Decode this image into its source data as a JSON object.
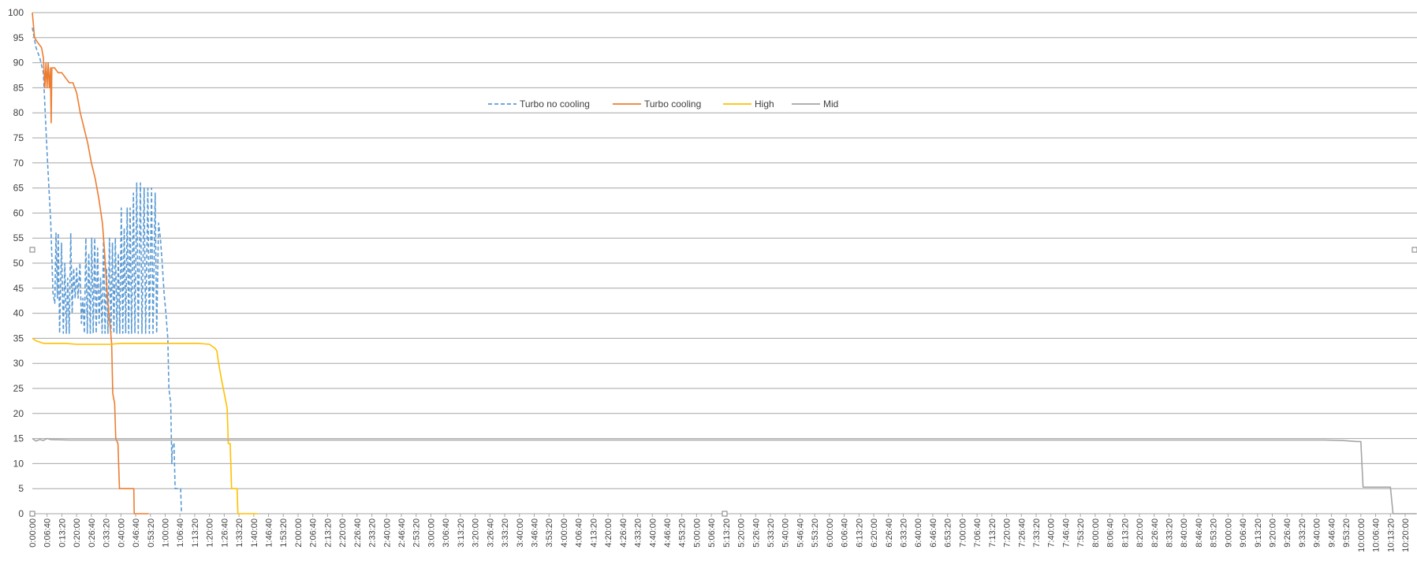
{
  "chart_data": {
    "type": "line",
    "title": "",
    "xlabel": "",
    "ylabel": "",
    "ylim": [
      0,
      100
    ],
    "y_ticks": [
      0,
      5,
      10,
      15,
      20,
      25,
      30,
      35,
      40,
      45,
      50,
      55,
      60,
      65,
      70,
      75,
      80,
      85,
      90,
      95,
      100
    ],
    "x_step_seconds": 400,
    "x_tick_labels": [
      "0:00:00",
      "0:06:40",
      "0:13:20",
      "0:20:00",
      "0:26:40",
      "0:33:20",
      "0:40:00",
      "0:46:40",
      "0:53:20",
      "1:00:00",
      "1:06:40",
      "1:13:20",
      "1:20:00",
      "1:26:40",
      "1:33:20",
      "1:40:00",
      "1:46:40",
      "1:53:20",
      "2:00:00",
      "2:06:40",
      "2:13:20",
      "2:20:00",
      "2:26:40",
      "2:33:20",
      "2:40:00",
      "2:46:40",
      "2:53:20",
      "3:00:00",
      "3:06:40",
      "3:13:20",
      "3:20:00",
      "3:26:40",
      "3:33:20",
      "3:40:00",
      "3:46:40",
      "3:53:20",
      "4:00:00",
      "4:06:40",
      "4:13:20",
      "4:20:00",
      "4:26:40",
      "4:33:20",
      "4:40:00",
      "4:46:40",
      "4:53:20",
      "5:00:00",
      "5:06:40",
      "5:13:20",
      "5:20:00",
      "5:26:40",
      "5:33:20",
      "5:40:00",
      "5:46:40",
      "5:53:20",
      "6:00:00",
      "6:06:40",
      "6:13:20",
      "6:20:00",
      "6:26:40",
      "6:33:20",
      "6:40:00",
      "6:46:40",
      "6:53:20",
      "7:00:00",
      "7:06:40",
      "7:13:20",
      "7:20:00",
      "7:26:40",
      "7:33:20",
      "7:40:00",
      "7:46:40",
      "7:53:20",
      "8:00:00",
      "8:06:40",
      "8:13:20",
      "8:20:00",
      "8:26:40",
      "8:33:20",
      "8:40:00",
      "8:46:40",
      "8:53:20",
      "9:00:00",
      "9:06:40",
      "9:13:20",
      "9:20:00",
      "9:26:40",
      "9:33:20",
      "9:40:00",
      "9:46:40",
      "9:53:20",
      "10:00:00",
      "10:06:40",
      "10:13:20",
      "10:20:00"
    ],
    "legend_position": "top-center",
    "grid": true,
    "series": [
      {
        "name": "Turbo no cooling",
        "color": "#5b9bd5",
        "dashed": true,
        "points": [
          [
            0,
            97
          ],
          [
            100,
            93
          ],
          [
            200,
            91
          ],
          [
            300,
            88
          ],
          [
            400,
            72
          ],
          [
            500,
            58
          ],
          [
            560,
            44
          ],
          [
            610,
            42
          ],
          [
            640,
            56
          ],
          [
            680,
            43
          ],
          [
            700,
            56
          ],
          [
            740,
            36
          ],
          [
            790,
            54
          ],
          [
            840,
            36
          ],
          [
            880,
            50
          ],
          [
            920,
            36
          ],
          [
            960,
            47
          ],
          [
            1000,
            36
          ],
          [
            1040,
            56
          ],
          [
            1080,
            40
          ],
          [
            1120,
            49
          ],
          [
            1160,
            43
          ],
          [
            1200,
            49
          ],
          [
            1240,
            43
          ],
          [
            1290,
            50
          ],
          [
            1330,
            38
          ],
          [
            1370,
            43
          ],
          [
            1410,
            36
          ],
          [
            1450,
            55
          ],
          [
            1490,
            36
          ],
          [
            1530,
            52
          ],
          [
            1570,
            36
          ],
          [
            1610,
            55
          ],
          [
            1650,
            36
          ],
          [
            1690,
            55
          ],
          [
            1730,
            36
          ],
          [
            1770,
            53
          ],
          [
            1810,
            38
          ],
          [
            1850,
            47
          ],
          [
            1890,
            36
          ],
          [
            1930,
            55
          ],
          [
            1970,
            36
          ],
          [
            2010,
            49
          ],
          [
            2050,
            36
          ],
          [
            2090,
            55
          ],
          [
            2130,
            36
          ],
          [
            2170,
            54
          ],
          [
            2210,
            36
          ],
          [
            2250,
            55
          ],
          [
            2290,
            36
          ],
          [
            2330,
            52
          ],
          [
            2370,
            36
          ],
          [
            2410,
            61
          ],
          [
            2450,
            36
          ],
          [
            2490,
            57
          ],
          [
            2530,
            36
          ],
          [
            2570,
            61
          ],
          [
            2610,
            36
          ],
          [
            2650,
            61
          ],
          [
            2690,
            36
          ],
          [
            2740,
            64
          ],
          [
            2780,
            36
          ],
          [
            2830,
            66
          ],
          [
            2870,
            36
          ],
          [
            2930,
            66
          ],
          [
            2970,
            36
          ],
          [
            3030,
            65
          ],
          [
            3070,
            36
          ],
          [
            3130,
            65
          ],
          [
            3170,
            36
          ],
          [
            3230,
            65
          ],
          [
            3270,
            36
          ],
          [
            3330,
            64
          ],
          [
            3370,
            36
          ],
          [
            3420,
            58
          ],
          [
            3470,
            55
          ],
          [
            3520,
            50
          ],
          [
            3570,
            44
          ],
          [
            3620,
            40
          ],
          [
            3670,
            35
          ],
          [
            3700,
            25
          ],
          [
            3750,
            22
          ],
          [
            3780,
            10
          ],
          [
            3800,
            14
          ],
          [
            3840,
            14
          ],
          [
            3870,
            5
          ],
          [
            3930,
            5
          ],
          [
            3980,
            5
          ],
          [
            4020,
            5
          ],
          [
            4040,
            0
          ]
        ]
      },
      {
        "name": "Turbo cooling",
        "color": "#ed7d31",
        "dashed": false,
        "points": [
          [
            0,
            100
          ],
          [
            60,
            95
          ],
          [
            150,
            94
          ],
          [
            250,
            93
          ],
          [
            300,
            91
          ],
          [
            340,
            85
          ],
          [
            370,
            90
          ],
          [
            400,
            85
          ],
          [
            430,
            90
          ],
          [
            460,
            85
          ],
          [
            490,
            89
          ],
          [
            510,
            78
          ],
          [
            530,
            89
          ],
          [
            600,
            89
          ],
          [
            700,
            88
          ],
          [
            800,
            88
          ],
          [
            900,
            87
          ],
          [
            1000,
            86
          ],
          [
            1100,
            86
          ],
          [
            1200,
            84
          ],
          [
            1300,
            80
          ],
          [
            1400,
            77
          ],
          [
            1500,
            74
          ],
          [
            1600,
            70
          ],
          [
            1700,
            67
          ],
          [
            1800,
            63
          ],
          [
            1900,
            58
          ],
          [
            1950,
            53
          ],
          [
            2000,
            47
          ],
          [
            2050,
            42
          ],
          [
            2100,
            38
          ],
          [
            2150,
            34
          ],
          [
            2180,
            24
          ],
          [
            2230,
            22
          ],
          [
            2260,
            15
          ],
          [
            2320,
            14
          ],
          [
            2360,
            5
          ],
          [
            2700,
            5
          ],
          [
            2750,
            5
          ],
          [
            2760,
            0
          ],
          [
            3150,
            0
          ]
        ]
      },
      {
        "name": "High",
        "color": "#ffc000",
        "dashed": false,
        "points": [
          [
            0,
            35
          ],
          [
            100,
            34.5
          ],
          [
            300,
            34
          ],
          [
            600,
            34
          ],
          [
            900,
            34
          ],
          [
            1200,
            33.8
          ],
          [
            1500,
            33.8
          ],
          [
            1800,
            33.8
          ],
          [
            2100,
            33.8
          ],
          [
            2400,
            34
          ],
          [
            2700,
            34
          ],
          [
            3000,
            34
          ],
          [
            3300,
            34
          ],
          [
            3600,
            34
          ],
          [
            3900,
            34
          ],
          [
            4200,
            34
          ],
          [
            4500,
            34
          ],
          [
            4800,
            33.8
          ],
          [
            4950,
            33
          ],
          [
            5000,
            32.5
          ],
          [
            5050,
            30
          ],
          [
            5120,
            27
          ],
          [
            5200,
            24
          ],
          [
            5280,
            21
          ],
          [
            5310,
            14
          ],
          [
            5360,
            14
          ],
          [
            5400,
            5
          ],
          [
            5500,
            5
          ],
          [
            5550,
            5
          ],
          [
            5570,
            0
          ],
          [
            6100,
            0
          ]
        ]
      },
      {
        "name": "Mid",
        "color": "#a5a5a5",
        "dashed": false,
        "points": [
          [
            0,
            15
          ],
          [
            100,
            14.5
          ],
          [
            200,
            14.8
          ],
          [
            300,
            14.6
          ],
          [
            400,
            15
          ],
          [
            500,
            14.8
          ],
          [
            1000,
            14.7
          ],
          [
            1500,
            14.7
          ],
          [
            2000,
            14.7
          ],
          [
            2500,
            14.7
          ],
          [
            3000,
            14.7
          ],
          [
            3500,
            14.7
          ],
          [
            4000,
            14.7
          ],
          [
            4500,
            14.7
          ],
          [
            5000,
            14.7
          ],
          [
            5500,
            14.7
          ],
          [
            6000,
            14.7
          ],
          [
            6500,
            14.7
          ],
          [
            7000,
            14.7
          ],
          [
            7500,
            14.7
          ],
          [
            8000,
            14.7
          ],
          [
            8500,
            14.7
          ],
          [
            9000,
            14.7
          ],
          [
            9500,
            14.7
          ],
          [
            10000,
            14.7
          ],
          [
            10500,
            14.7
          ],
          [
            11000,
            14.7
          ],
          [
            11500,
            14.7
          ],
          [
            12000,
            14.7
          ],
          [
            12500,
            14.7
          ],
          [
            13000,
            14.7
          ],
          [
            13500,
            14.7
          ],
          [
            14000,
            14.7
          ],
          [
            14500,
            14.7
          ],
          [
            15000,
            14.7
          ],
          [
            15500,
            14.7
          ],
          [
            16000,
            14.7
          ],
          [
            16500,
            14.7
          ],
          [
            17000,
            14.7
          ],
          [
            17500,
            14.7
          ],
          [
            18000,
            14.7
          ],
          [
            18500,
            14.7
          ],
          [
            19000,
            14.7
          ],
          [
            19500,
            14.7
          ],
          [
            20000,
            14.7
          ],
          [
            20500,
            14.7
          ],
          [
            21000,
            14.7
          ],
          [
            21500,
            14.7
          ],
          [
            22000,
            14.7
          ],
          [
            22500,
            14.7
          ],
          [
            23000,
            14.7
          ],
          [
            23500,
            14.7
          ],
          [
            24000,
            14.7
          ],
          [
            24500,
            14.7
          ],
          [
            25000,
            14.7
          ],
          [
            25500,
            14.7
          ],
          [
            26000,
            14.7
          ],
          [
            26500,
            14.7
          ],
          [
            27000,
            14.7
          ],
          [
            27500,
            14.7
          ],
          [
            28000,
            14.7
          ],
          [
            28500,
            14.7
          ],
          [
            29000,
            14.7
          ],
          [
            29500,
            14.7
          ],
          [
            30000,
            14.7
          ],
          [
            30500,
            14.7
          ],
          [
            31000,
            14.7
          ],
          [
            31500,
            14.7
          ],
          [
            32000,
            14.7
          ],
          [
            32500,
            14.7
          ],
          [
            33000,
            14.7
          ],
          [
            33500,
            14.7
          ],
          [
            34000,
            14.7
          ],
          [
            34500,
            14.7
          ],
          [
            35000,
            14.7
          ],
          [
            35500,
            14.6
          ],
          [
            35900,
            14.4
          ],
          [
            36000,
            14.4
          ],
          [
            36060,
            5.3
          ],
          [
            36300,
            5.3
          ],
          [
            36600,
            5.3
          ],
          [
            36800,
            5.3
          ],
          [
            36870,
            0
          ],
          [
            37500,
            0
          ]
        ]
      }
    ]
  }
}
